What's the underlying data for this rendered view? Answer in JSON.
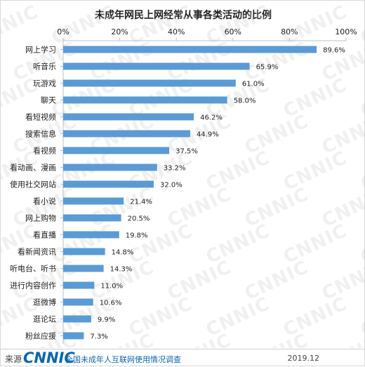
{
  "chart_data": {
    "type": "bar",
    "orientation": "horizontal",
    "title": "未成年网民上网经常从事各类活动的比例",
    "categories": [
      "网上学习",
      "听音乐",
      "玩游戏",
      "聊天",
      "看短视频",
      "搜索信息",
      "看视频",
      "看动画、漫画",
      "使用社交网站",
      "看小说",
      "网上购物",
      "看直播",
      "看新闻资讯",
      "听电台、听书",
      "进行内容创作",
      "逛微博",
      "逛论坛",
      "粉丝应援"
    ],
    "values": [
      89.6,
      65.9,
      61.0,
      58.0,
      46.2,
      44.9,
      37.5,
      33.2,
      32.0,
      21.4,
      20.5,
      19.8,
      14.8,
      14.3,
      11.0,
      10.6,
      9.9,
      7.3
    ],
    "value_labels": [
      "89.6%",
      "65.9%",
      "61.0%",
      "58.0%",
      "46.2%",
      "44.9%",
      "37.5%",
      "33.2%",
      "32.0%",
      "21.4%",
      "20.5%",
      "19.8%",
      "14.8%",
      "14.3%",
      "11.0%",
      "10.6%",
      "9.9%",
      "7.3%"
    ],
    "xlim": [
      0,
      100
    ],
    "ticks": [
      0,
      20,
      40,
      60,
      80,
      100
    ],
    "tick_labels": [
      "0%",
      "20%",
      "40%",
      "60%",
      "80%",
      "100%"
    ],
    "axis_position": "top",
    "grid": false,
    "bar_color": "#5b9bd5"
  },
  "footer": {
    "source_label": "来源",
    "logo_text": "CNNIC",
    "description": "全国未成年人互联网使用情况调查",
    "date": "2019.12"
  },
  "watermark": {
    "text": "CNNIC"
  }
}
